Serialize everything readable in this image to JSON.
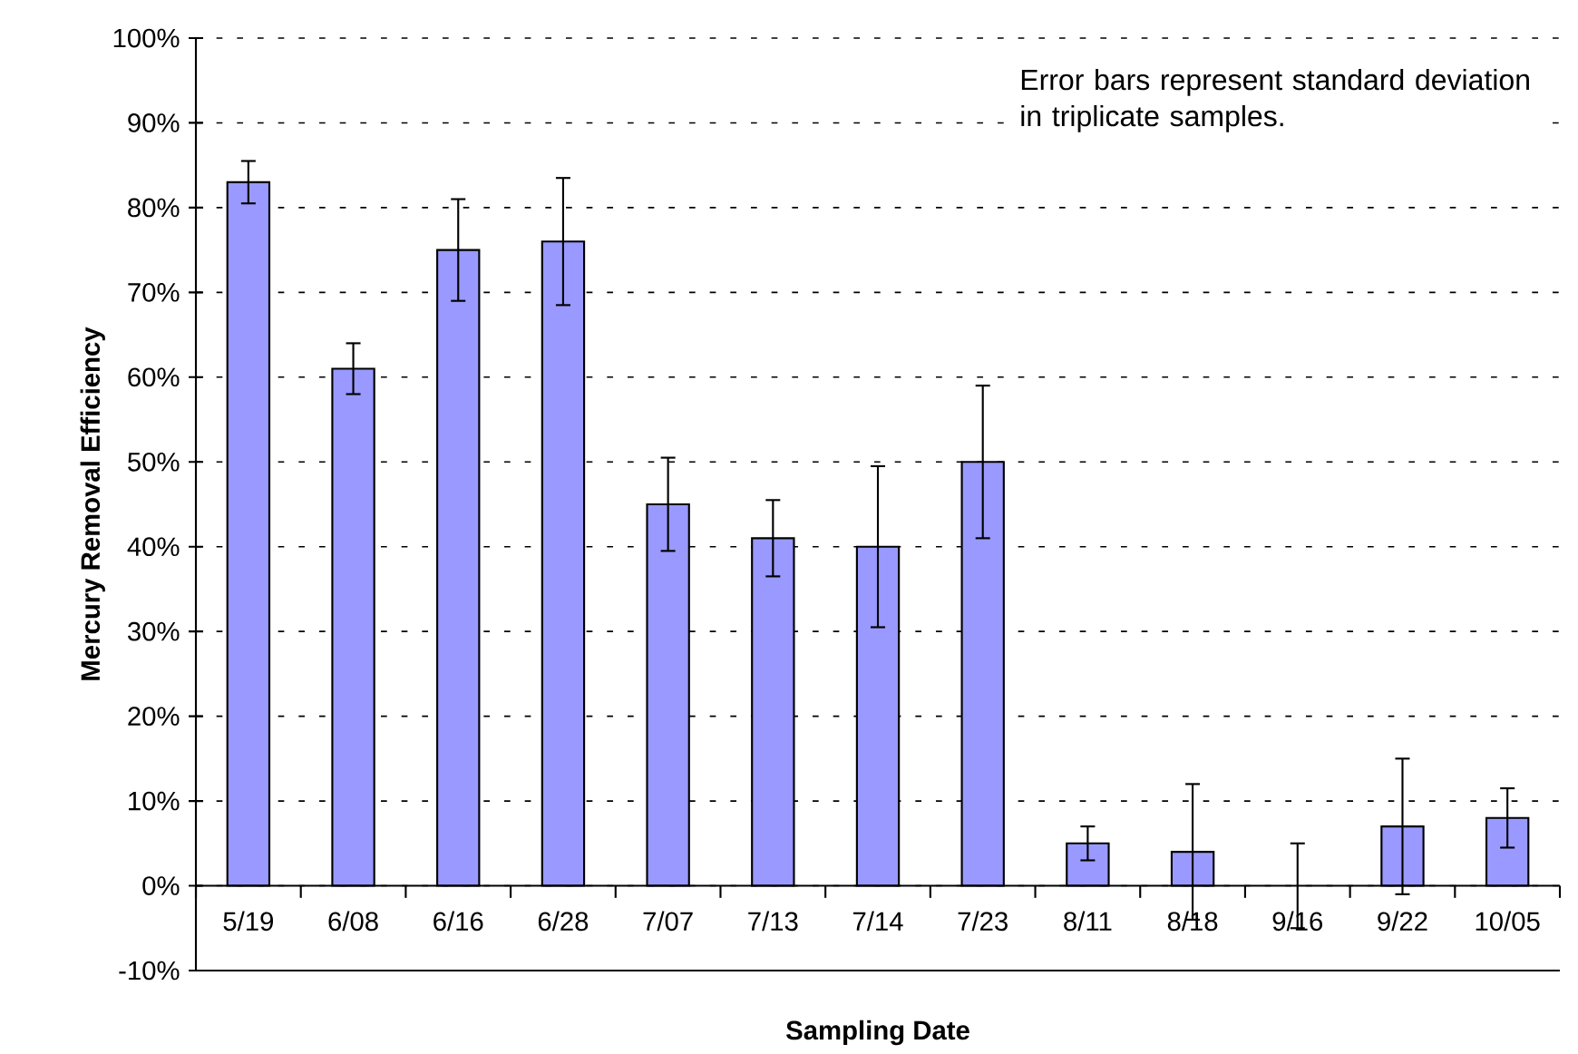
{
  "chart_data": {
    "type": "bar",
    "xlabel": "Sampling Date",
    "ylabel": "Mercury Removal Efficiency",
    "categories": [
      "5/19",
      "6/08",
      "6/16",
      "6/28",
      "7/07",
      "7/13",
      "7/14",
      "7/23",
      "8/11",
      "8/18",
      "9/16",
      "9/22",
      "10/05"
    ],
    "values": [
      83,
      61,
      75,
      76,
      45,
      41,
      40,
      50,
      5,
      4,
      0,
      7,
      8
    ],
    "errors": [
      2.5,
      3,
      6,
      7.5,
      5.5,
      4.5,
      9.5,
      9,
      2,
      8,
      5,
      8,
      3.5
    ],
    "color": "#9999ff",
    "ylim": [
      -10,
      100
    ],
    "yticks": [
      {
        "value": -10,
        "label": "-10%"
      },
      {
        "value": 0,
        "label": "0%"
      },
      {
        "value": 10,
        "label": "10%"
      },
      {
        "value": 20,
        "label": "20%"
      },
      {
        "value": 30,
        "label": "30%"
      },
      {
        "value": 40,
        "label": "40%"
      },
      {
        "value": 50,
        "label": "50%"
      },
      {
        "value": 60,
        "label": "60%"
      },
      {
        "value": 70,
        "label": "70%"
      },
      {
        "value": 80,
        "label": "80%"
      },
      {
        "value": 90,
        "label": "90%"
      },
      {
        "value": 100,
        "label": "100%"
      }
    ],
    "grid": "y",
    "annotations": [
      "Error bars represent standard deviation in triplicate samples."
    ]
  }
}
